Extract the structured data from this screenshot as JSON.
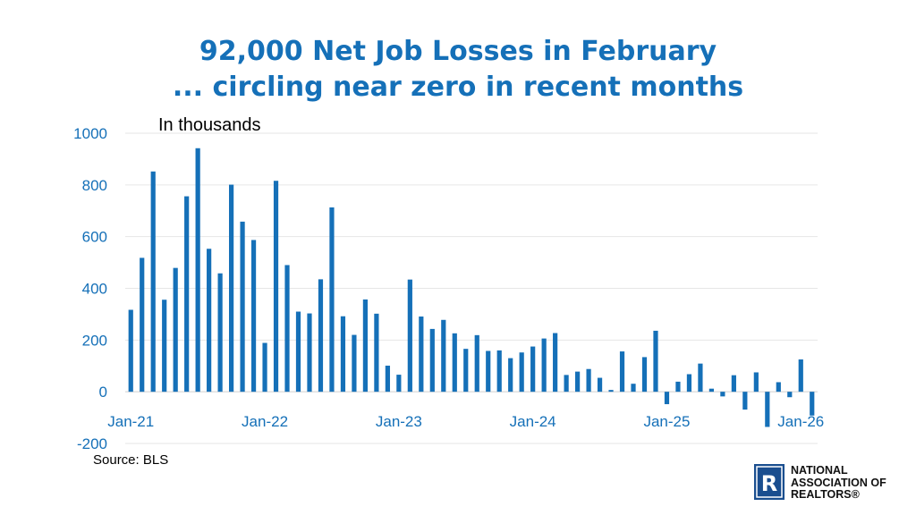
{
  "title_line1": "92,000 Net Job Losses in February",
  "title_line2": "... circling near zero in recent months",
  "source": "Source: BLS",
  "logo": {
    "line1": "NATIONAL",
    "line2": "ASSOCIATION OF",
    "line3": "REALTORS®"
  },
  "colors": {
    "title": "#1570b8",
    "bar": "#1570b8",
    "axis_text": "#1570b8",
    "logo": "#1a4e8f"
  },
  "chart_data": {
    "type": "bar",
    "title": "",
    "annotation": "In thousands",
    "xlabel": "",
    "ylabel": "",
    "ylim": [
      -200,
      1000
    ],
    "yticks": [
      1000,
      800,
      600,
      400,
      200,
      0,
      -200
    ],
    "grid": true,
    "x_start": "Jan-21",
    "x_end": "Feb-26",
    "xtick_labels": [
      "Jan-21",
      "Jan-22",
      "Jan-23",
      "Jan-24",
      "Jan-25",
      "Jan-26"
    ],
    "series": [
      {
        "values": [
          317,
          518,
          852,
          356,
          479,
          756,
          942,
          553,
          458,
          801,
          658,
          587,
          189,
          816,
          490,
          310,
          303,
          435,
          713,
          292,
          220,
          357,
          302,
          101,
          66,
          434,
          291,
          243,
          278,
          226,
          166,
          219,
          158,
          160,
          130,
          152,
          175,
          206,
          227,
          65,
          78,
          88,
          54,
          7,
          156,
          31,
          134,
          236,
          -48,
          39,
          68,
          109,
          12,
          -18,
          64,
          -69,
          75,
          -136,
          37,
          -21,
          125,
          -92
        ]
      }
    ]
  }
}
